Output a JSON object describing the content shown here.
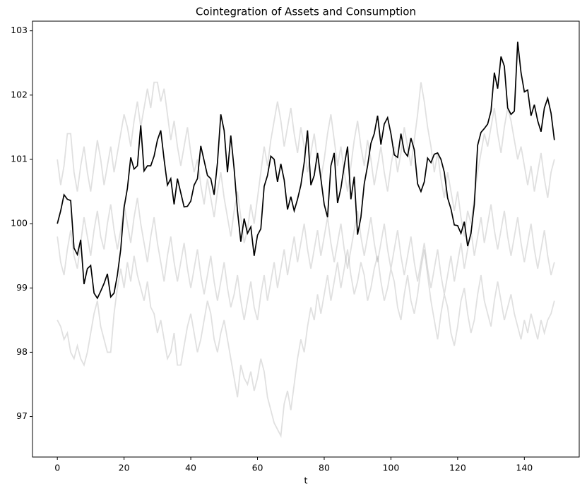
{
  "chart_data": {
    "type": "line",
    "title": "Cointegration of Assets and Consumption",
    "xlabel": "t",
    "xlim": [
      -7.45,
      156.45
    ],
    "ylim": [
      96.37,
      103.15
    ],
    "xticks": [
      0,
      20,
      40,
      60,
      80,
      100,
      120,
      140
    ],
    "yticks": [
      97,
      98,
      99,
      100,
      101,
      102,
      103
    ],
    "x": [
      0,
      1,
      2,
      3,
      4,
      5,
      6,
      7,
      8,
      9,
      10,
      11,
      12,
      13,
      14,
      15,
      16,
      17,
      18,
      19,
      20,
      21,
      22,
      23,
      24,
      25,
      26,
      27,
      28,
      29,
      30,
      31,
      32,
      33,
      34,
      35,
      36,
      37,
      38,
      39,
      40,
      41,
      42,
      43,
      44,
      45,
      46,
      47,
      48,
      49,
      50,
      51,
      52,
      53,
      54,
      55,
      56,
      57,
      58,
      59,
      60,
      61,
      62,
      63,
      64,
      65,
      66,
      67,
      68,
      69,
      70,
      71,
      72,
      73,
      74,
      75,
      76,
      77,
      78,
      79,
      80,
      81,
      82,
      83,
      84,
      85,
      86,
      87,
      88,
      89,
      90,
      91,
      92,
      93,
      94,
      95,
      96,
      97,
      98,
      99,
      100,
      101,
      102,
      103,
      104,
      105,
      106,
      107,
      108,
      109,
      110,
      111,
      112,
      113,
      114,
      115,
      116,
      117,
      118,
      119,
      120,
      121,
      122,
      123,
      124,
      125,
      126,
      127,
      128,
      129,
      130,
      131,
      132,
      133,
      134,
      135,
      136,
      137,
      138,
      139,
      140,
      141,
      142,
      143,
      144,
      145,
      146,
      147,
      148,
      149
    ],
    "series": [
      {
        "color": "#000000",
        "alpha": 0.12,
        "values": [
          98.5,
          98.4,
          98.2,
          98.3,
          98.0,
          97.9,
          98.1,
          97.9,
          97.8,
          98.0,
          98.3,
          98.6,
          98.8,
          98.4,
          98.2,
          98.0,
          98.0,
          98.6,
          99.0,
          99.3,
          99.0,
          99.4,
          99.1,
          99.5,
          99.2,
          99.0,
          98.8,
          99.1,
          98.7,
          98.6,
          98.3,
          98.5,
          98.2,
          97.9,
          98.0,
          98.3,
          97.8,
          97.8,
          98.1,
          98.4,
          98.6,
          98.3,
          98.0,
          98.2,
          98.5,
          98.8,
          98.6,
          98.2,
          98.0,
          98.3,
          98.5,
          98.2,
          97.9,
          97.6,
          97.3,
          97.8,
          97.6,
          97.5,
          97.7,
          97.4,
          97.6,
          97.9,
          97.7,
          97.3,
          97.1,
          96.9,
          96.8,
          96.7,
          97.2,
          97.4,
          97.1,
          97.5,
          97.9,
          98.2,
          98.0,
          98.4,
          98.7,
          98.5,
          98.9,
          98.6,
          98.9,
          99.2,
          98.8,
          99.1,
          99.4,
          99.0,
          99.3,
          99.6,
          99.2,
          98.9,
          99.1,
          99.4,
          99.2,
          98.8,
          99.0,
          99.3,
          99.5,
          99.1,
          98.8,
          99.0,
          99.3,
          99.1,
          98.7,
          98.5,
          98.9,
          99.2,
          98.8,
          98.6,
          98.9,
          99.3,
          99.6,
          99.2,
          98.8,
          98.5,
          98.2,
          98.6,
          98.9,
          98.7,
          98.3,
          98.1,
          98.4,
          98.8,
          99.0,
          98.6,
          98.3,
          98.5,
          98.9,
          99.2,
          98.8,
          98.6,
          98.4,
          98.8,
          99.1,
          98.8,
          98.5,
          98.7,
          98.9,
          98.6,
          98.4,
          98.2,
          98.5,
          98.3,
          98.6,
          98.4,
          98.2,
          98.5,
          98.3,
          98.5,
          98.6,
          98.8
        ]
      },
      {
        "color": "#000000",
        "alpha": 0.12,
        "values": [
          101.0,
          100.6,
          100.9,
          101.4,
          101.4,
          100.8,
          100.5,
          100.9,
          101.2,
          100.8,
          100.5,
          100.9,
          101.3,
          101.0,
          100.6,
          100.9,
          101.2,
          100.8,
          101.1,
          101.4,
          101.7,
          101.5,
          101.2,
          101.6,
          101.9,
          101.5,
          101.8,
          102.1,
          101.8,
          102.2,
          102.2,
          101.9,
          102.1,
          101.7,
          101.3,
          101.6,
          101.2,
          100.9,
          101.2,
          101.5,
          101.1,
          100.8,
          101.0,
          100.6,
          100.3,
          100.7,
          100.4,
          100.1,
          100.5,
          100.8,
          100.4,
          100.1,
          99.8,
          100.2,
          100.5,
          100.1,
          99.7,
          99.9,
          100.3,
          100.0,
          100.4,
          100.8,
          101.2,
          100.9,
          101.3,
          101.6,
          101.9,
          101.6,
          101.2,
          101.5,
          101.8,
          101.4,
          101.1,
          101.5,
          101.2,
          100.8,
          101.1,
          101.4,
          101.0,
          100.7,
          101.0,
          101.4,
          101.7,
          101.3,
          100.9,
          101.2,
          100.8,
          100.5,
          100.9,
          101.3,
          101.6,
          101.2,
          100.9,
          101.3,
          101.0,
          100.6,
          100.9,
          101.2,
          100.8,
          100.5,
          100.9,
          101.2,
          100.8,
          101.1,
          101.5,
          101.2,
          100.9,
          101.3,
          101.7,
          102.2,
          101.9,
          101.5,
          101.2,
          100.8,
          101.1,
          100.7,
          100.4,
          100.8,
          100.5,
          100.2,
          100.5,
          100.1,
          99.8,
          100.2,
          100.0,
          100.4,
          100.8,
          101.1,
          101.4,
          101.2,
          101.5,
          101.8,
          101.4,
          101.1,
          101.5,
          101.8,
          101.6,
          101.3,
          101.0,
          101.2,
          100.9,
          100.6,
          100.9,
          100.5,
          100.8,
          101.1,
          100.7,
          100.4,
          100.8,
          101.0
        ]
      },
      {
        "color": "#000000",
        "alpha": 0.12,
        "values": [
          99.8,
          99.4,
          99.2,
          99.6,
          99.9,
          99.5,
          99.3,
          99.7,
          100.1,
          99.8,
          99.5,
          99.9,
          100.2,
          99.8,
          99.6,
          100.0,
          100.3,
          99.9,
          99.6,
          99.9,
          100.3,
          100.0,
          99.7,
          100.1,
          100.4,
          100.0,
          99.7,
          99.4,
          99.8,
          100.1,
          99.7,
          99.4,
          99.1,
          99.5,
          99.8,
          99.4,
          99.1,
          99.4,
          99.7,
          99.3,
          99.0,
          99.3,
          99.6,
          99.2,
          98.9,
          99.2,
          99.5,
          99.1,
          98.8,
          99.1,
          99.4,
          99.0,
          98.7,
          98.9,
          99.2,
          98.8,
          98.5,
          98.8,
          99.1,
          98.7,
          98.5,
          98.9,
          99.2,
          98.8,
          99.1,
          99.4,
          99.0,
          99.3,
          99.6,
          99.2,
          99.5,
          99.8,
          99.4,
          99.7,
          100.0,
          99.6,
          99.3,
          99.6,
          99.9,
          99.5,
          99.8,
          100.1,
          99.7,
          99.4,
          99.7,
          100.0,
          99.6,
          99.3,
          99.6,
          99.9,
          100.2,
          99.8,
          99.5,
          99.8,
          100.1,
          99.7,
          99.4,
          99.7,
          100.0,
          99.6,
          99.3,
          99.6,
          99.9,
          99.5,
          99.2,
          99.5,
          99.8,
          99.4,
          99.1,
          99.4,
          99.7,
          99.3,
          99.0,
          99.3,
          99.6,
          99.2,
          98.9,
          99.2,
          99.5,
          99.1,
          99.4,
          99.7,
          99.3,
          99.6,
          99.9,
          99.5,
          99.8,
          100.1,
          99.7,
          100.0,
          100.3,
          99.9,
          99.6,
          99.9,
          100.2,
          99.8,
          99.5,
          99.8,
          100.1,
          99.7,
          99.4,
          99.7,
          100.0,
          99.6,
          99.3,
          99.6,
          99.9,
          99.5,
          99.2,
          99.4
        ]
      },
      {
        "color": "#000000",
        "alpha": 1,
        "values": [
          100.0,
          100.2,
          100.45,
          100.38,
          100.36,
          99.62,
          99.52,
          99.75,
          99.06,
          99.3,
          99.35,
          98.92,
          98.84,
          98.95,
          99.07,
          99.22,
          98.86,
          98.92,
          99.2,
          99.6,
          100.25,
          100.55,
          101.03,
          100.85,
          100.9,
          101.53,
          100.82,
          100.9,
          100.9,
          101.05,
          101.3,
          101.45,
          101.0,
          100.6,
          100.7,
          100.3,
          100.7,
          100.48,
          100.26,
          100.27,
          100.35,
          100.6,
          100.7,
          101.21,
          100.98,
          100.75,
          100.7,
          100.45,
          100.95,
          101.7,
          101.45,
          100.8,
          101.37,
          100.85,
          100.2,
          99.72,
          100.08,
          99.85,
          99.95,
          99.5,
          99.82,
          99.92,
          100.58,
          100.75,
          101.05,
          101.0,
          100.65,
          100.93,
          100.68,
          100.22,
          100.42,
          100.2,
          100.38,
          100.6,
          100.95,
          101.45,
          100.6,
          100.75,
          101.1,
          100.7,
          100.3,
          100.1,
          100.9,
          101.1,
          100.32,
          100.55,
          100.9,
          101.2,
          100.38,
          100.73,
          99.83,
          100.1,
          100.62,
          100.9,
          101.25,
          101.4,
          101.68,
          101.23,
          101.55,
          101.65,
          101.4,
          101.07,
          101.03,
          101.4,
          101.12,
          101.05,
          101.33,
          101.15,
          100.62,
          100.5,
          100.65,
          101.02,
          100.95,
          101.08,
          101.1,
          101.0,
          100.8,
          100.4,
          100.23,
          99.98,
          99.97,
          99.85,
          100.03,
          99.65,
          99.85,
          100.3,
          101.22,
          101.42,
          101.48,
          101.55,
          101.75,
          102.35,
          102.1,
          102.6,
          102.45,
          101.8,
          101.7,
          101.75,
          102.83,
          102.35,
          102.05,
          102.08,
          101.68,
          101.85,
          101.6,
          101.43,
          101.8,
          101.95,
          101.72,
          101.3
        ]
      }
    ]
  }
}
